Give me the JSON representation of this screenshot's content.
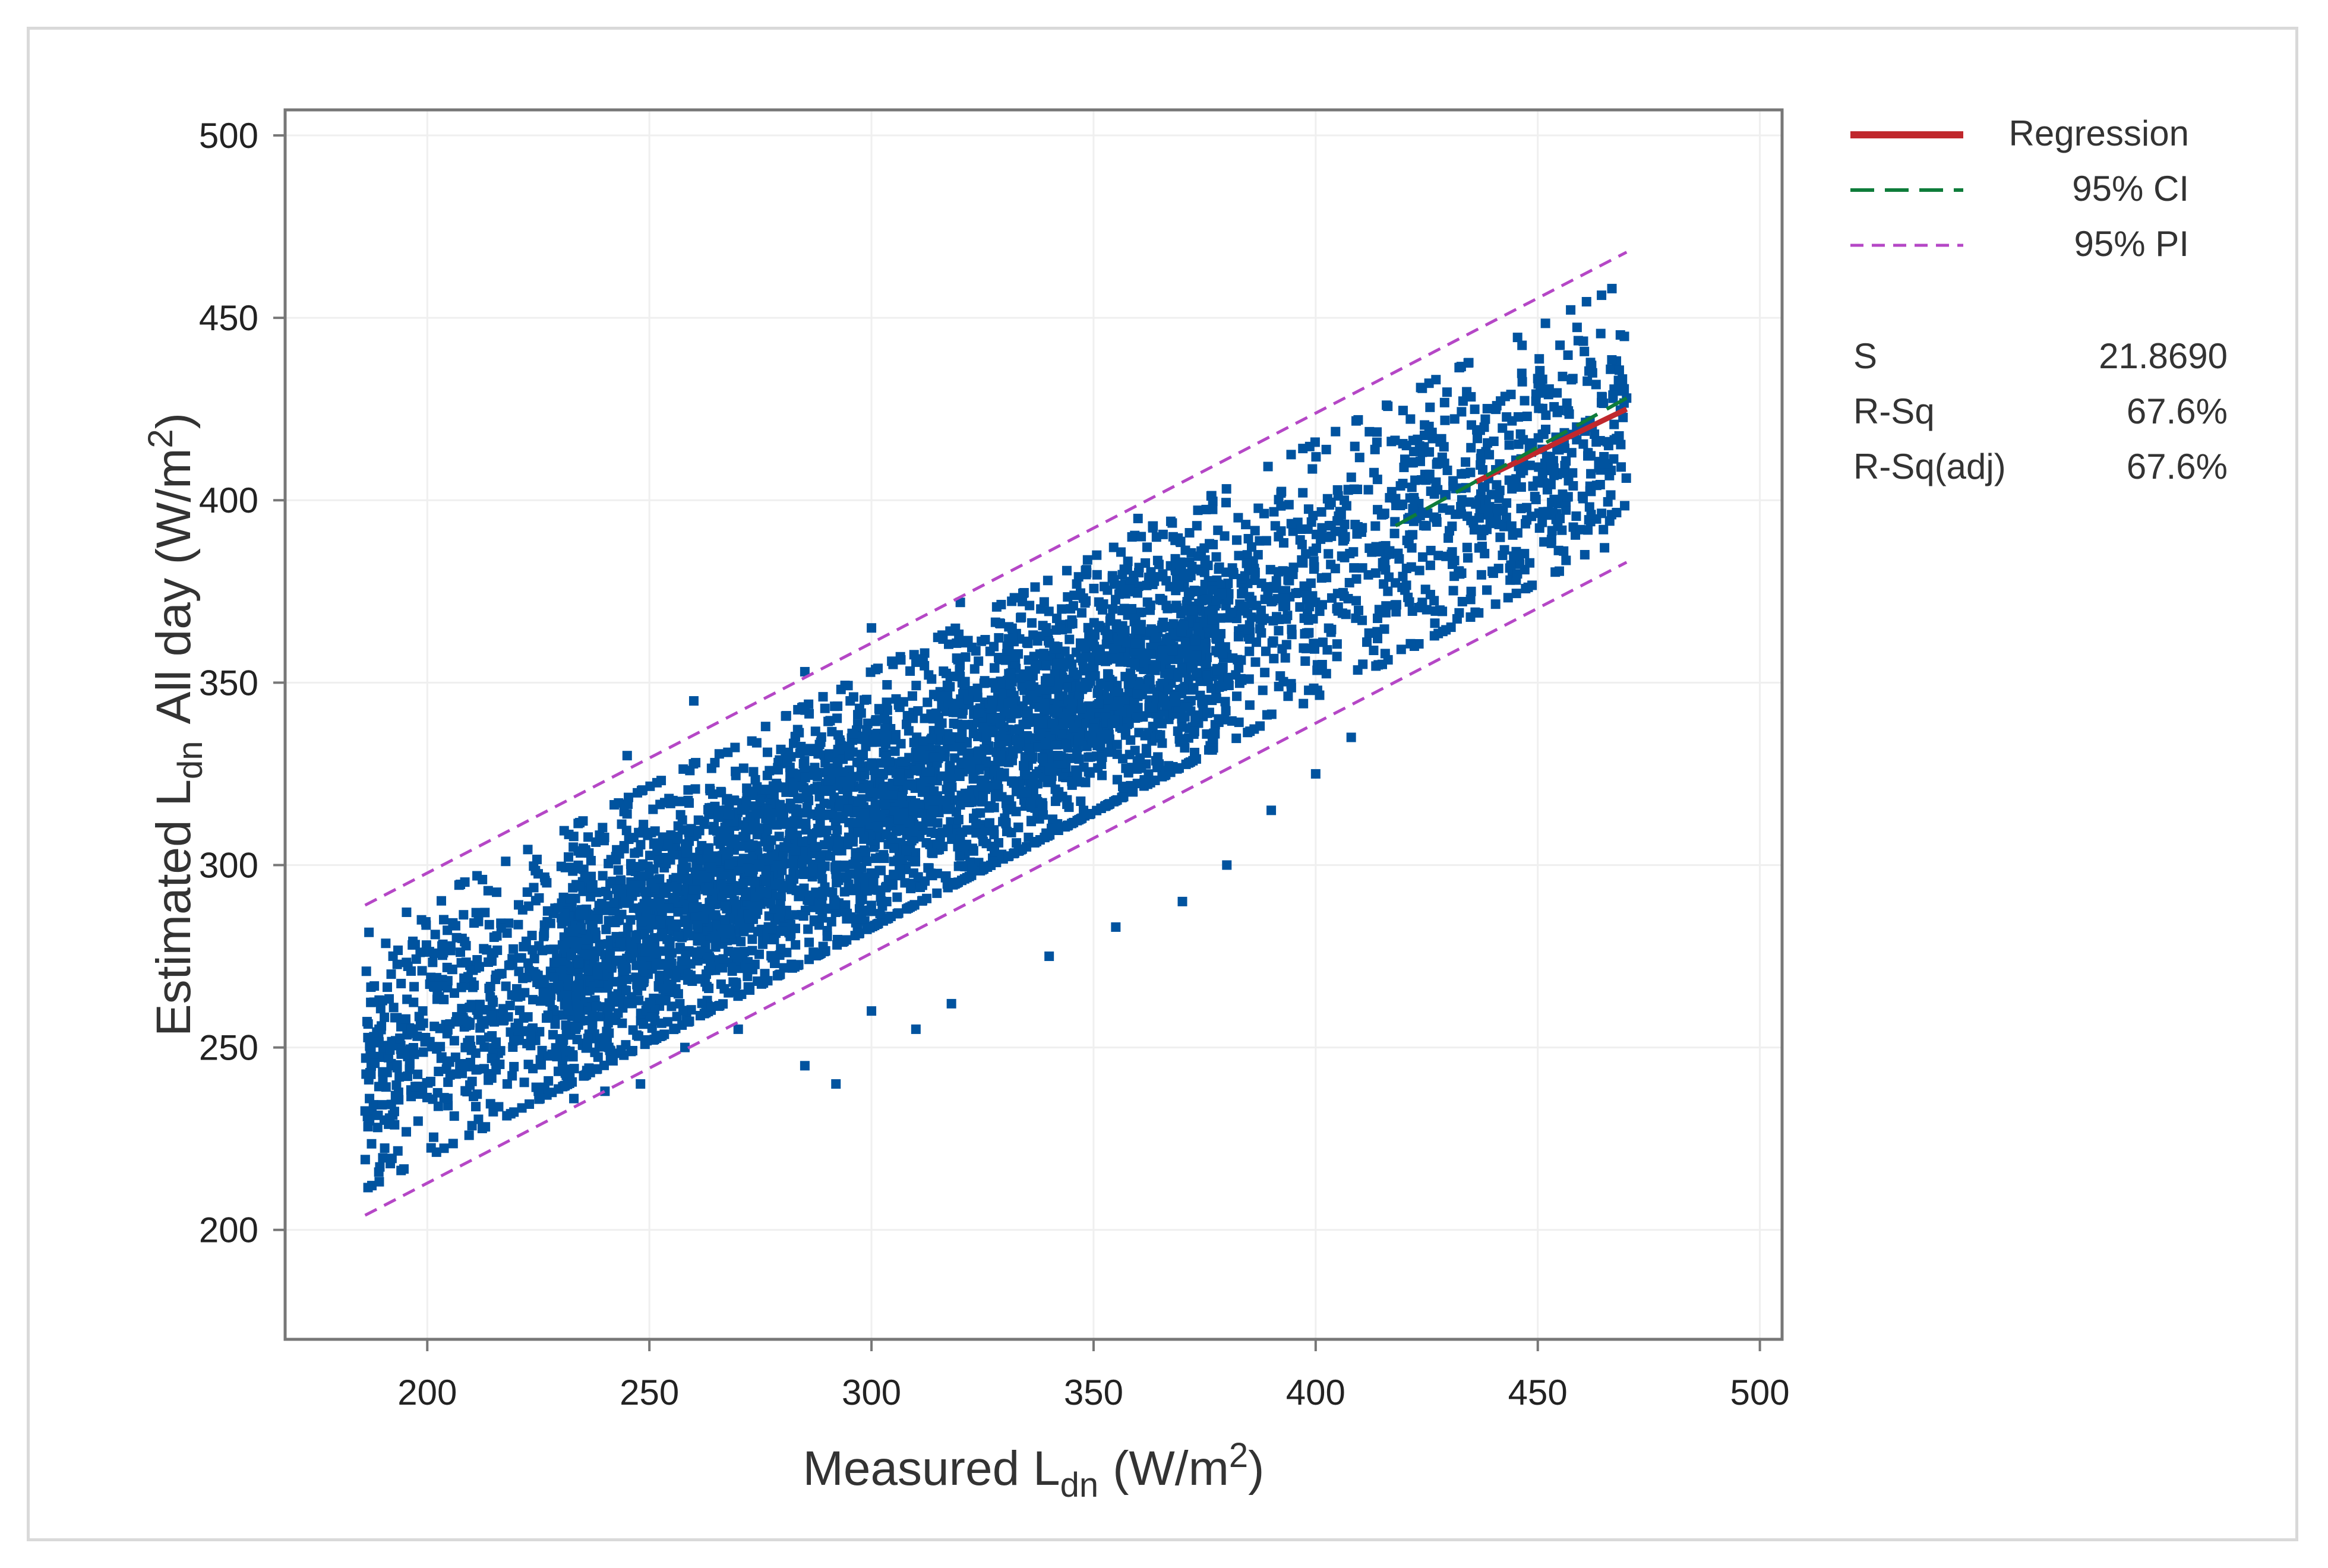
{
  "chart_data": {
    "type": "scatter",
    "x": {
      "label_main": "Measured L",
      "label_sub": "dn",
      "label_unit_pre": "(W/m",
      "label_sup": "2",
      "label_unit_post": ")",
      "range": [
        168,
        505
      ],
      "ticks": [
        "200",
        "250",
        "300",
        "350",
        "400",
        "450",
        "500"
      ]
    },
    "y": {
      "label_main": "Estimated L",
      "label_sub": "dn",
      "label_mid": " All day (W/m",
      "label_sup": "2",
      "label_unit_post": ")",
      "range": [
        170,
        507
      ],
      "ticks": [
        "200",
        "250",
        "300",
        "350",
        "400",
        "450",
        "500"
      ]
    },
    "grid": true,
    "series": [
      {
        "name": "",
        "kind": "points",
        "color": "#00539F",
        "description_clusters": [
          {
            "x_range": [
              186,
              470
            ],
            "slope": 0.64,
            "intercept": 122,
            "spread": 18
          }
        ],
        "outliers": [
          [
            187,
            236
          ],
          [
            190,
            241
          ],
          [
            196,
            244
          ],
          [
            205,
            246
          ],
          [
            218,
            240
          ],
          [
            225,
            238
          ],
          [
            233,
            236
          ],
          [
            240,
            238
          ],
          [
            248,
            240
          ],
          [
            258,
            250
          ],
          [
            270,
            255
          ],
          [
            285,
            245
          ],
          [
            292,
            240
          ],
          [
            300,
            260
          ],
          [
            310,
            255
          ],
          [
            318,
            262
          ],
          [
            340,
            275
          ],
          [
            355,
            283
          ],
          [
            370,
            290
          ],
          [
            380,
            300
          ],
          [
            390,
            315
          ],
          [
            400,
            325
          ],
          [
            408,
            335
          ],
          [
            415,
            355
          ],
          [
            425,
            370
          ],
          [
            435,
            375
          ],
          [
            440,
            380
          ],
          [
            455,
            395
          ],
          [
            465,
            410
          ],
          [
            470,
            428
          ],
          [
            245,
            330
          ],
          [
            260,
            345
          ],
          [
            285,
            353
          ],
          [
            300,
            365
          ],
          [
            320,
            372
          ],
          [
            360,
            395
          ]
        ]
      },
      {
        "name": "Regression",
        "kind": "line",
        "color": "#C0282D",
        "x": [
          436,
          470
        ],
        "y": [
          405,
          425
        ]
      },
      {
        "name": "95% CI",
        "kind": "dashed",
        "color": "#0E7C3A",
        "x": [
          418,
          470
        ],
        "y": [
          393,
          428
        ]
      },
      {
        "name": "95% PI",
        "kind": "dotted",
        "color": "#B547C6",
        "upper": {
          "x": [
            186,
            470
          ],
          "y": [
            289,
            468
          ]
        },
        "lower": {
          "x": [
            186,
            470
          ],
          "y": [
            204,
            383
          ]
        }
      }
    ],
    "legend": {
      "placement": "right",
      "entries": [
        {
          "label": "Regression",
          "color": "#C0282D",
          "style": "solid"
        },
        {
          "label": "95% CI",
          "color": "#0E7C3A",
          "style": "dashed"
        },
        {
          "label": "95% PI",
          "color": "#B547C6",
          "style": "dotted"
        }
      ]
    },
    "stats": [
      {
        "label": "S",
        "value": "21.8690"
      },
      {
        "label": "R-Sq",
        "value": "67.6%"
      },
      {
        "label": "R-Sq(adj)",
        "value": "67.6%"
      }
    ]
  }
}
